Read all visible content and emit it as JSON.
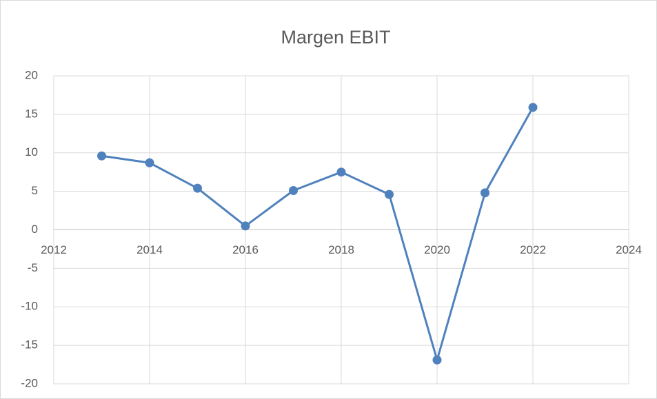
{
  "chart_data": {
    "type": "line",
    "title": "Margen EBIT",
    "x": [
      2013,
      2014,
      2015,
      2016,
      2017,
      2018,
      2019,
      2020,
      2021,
      2022
    ],
    "series": [
      {
        "name": "Margen EBIT",
        "color": "#4f81bd",
        "values": [
          9.6,
          8.7,
          5.4,
          0.5,
          5.1,
          7.5,
          4.6,
          -16.9,
          4.8,
          15.9
        ]
      }
    ],
    "xlim": [
      2012,
      2024
    ],
    "xticks": [
      2012,
      2014,
      2016,
      2018,
      2020,
      2022,
      2024
    ],
    "ylim": [
      -20,
      20
    ],
    "yticks": [
      -20,
      -15,
      -10,
      -5,
      0,
      5,
      10,
      15,
      20
    ],
    "grid": true
  }
}
